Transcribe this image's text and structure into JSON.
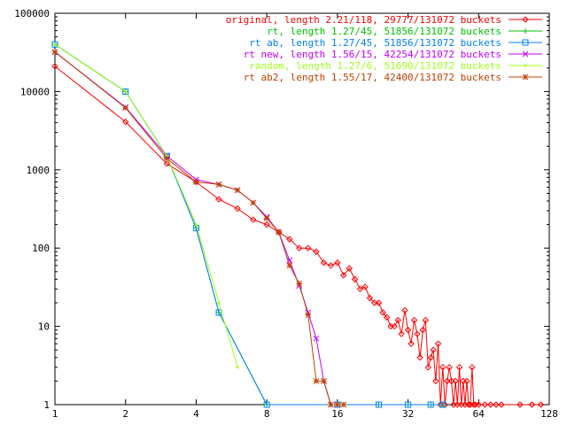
{
  "chart_data": {
    "type": "line",
    "title": "",
    "xlabel": "",
    "ylabel": "",
    "xscale": "log2",
    "yscale": "log10",
    "xlim": [
      1,
      128
    ],
    "ylim": [
      1,
      100000
    ],
    "xticks": [
      {
        "value": 1,
        "label": "1"
      },
      {
        "value": 2,
        "label": "2"
      },
      {
        "value": 4,
        "label": "4"
      },
      {
        "value": 8,
        "label": "8"
      },
      {
        "value": 16,
        "label": "16"
      },
      {
        "value": 32,
        "label": "32"
      },
      {
        "value": 64,
        "label": "64"
      },
      {
        "value": 128,
        "label": "128"
      }
    ],
    "yticks": [
      {
        "value": 1,
        "label": "1"
      },
      {
        "value": 10,
        "label": "10"
      },
      {
        "value": 100,
        "label": "100"
      },
      {
        "value": 1000,
        "label": "1000"
      },
      {
        "value": 10000,
        "label": "10000"
      },
      {
        "value": 100000,
        "label": "100000"
      }
    ],
    "grid": false,
    "legend_position": "top-right",
    "series": [
      {
        "name": "original, length 2.21/118, 29777/131072 buckets",
        "color": "#ff0000",
        "marker": "diamond",
        "x": [
          1,
          2,
          3,
          4,
          5,
          6,
          7,
          8,
          9,
          10,
          11,
          12,
          13,
          14,
          15,
          16,
          17,
          18,
          19,
          20,
          21,
          22,
          23,
          24,
          25,
          26,
          27,
          28,
          29,
          30,
          31,
          32,
          33,
          34,
          35,
          36,
          37,
          38,
          39,
          40,
          41,
          42,
          43,
          44,
          45,
          46,
          47,
          48,
          49,
          50,
          51,
          52,
          53,
          54,
          55,
          56,
          57,
          58,
          59,
          60,
          61,
          62,
          64,
          68,
          72,
          76,
          80,
          96,
          108,
          118
        ],
        "y": [
          21000,
          4100,
          1200,
          700,
          420,
          320,
          230,
          200,
          160,
          130,
          100,
          100,
          90,
          65,
          60,
          65,
          45,
          55,
          40,
          30,
          32,
          23,
          20,
          20,
          15,
          13,
          10,
          10,
          12,
          8,
          16,
          9,
          6,
          12,
          8,
          4,
          9,
          12,
          3,
          4,
          5,
          2,
          6,
          1,
          3,
          1,
          2,
          3,
          2,
          1,
          2,
          1,
          3,
          1,
          2,
          1,
          2,
          1,
          1,
          3,
          1,
          1,
          1,
          1,
          1,
          1,
          1,
          1,
          1,
          1
        ]
      },
      {
        "name": "rt, length 1.27/45, 51856/131072 buckets",
        "color": "#00c000",
        "marker": "plus",
        "x": [
          1,
          2,
          3,
          4,
          5,
          8,
          16,
          24,
          32,
          40,
          45
        ],
        "y": [
          40000,
          10000,
          1500,
          180,
          15,
          1,
          1,
          1,
          1,
          1,
          1
        ]
      },
      {
        "name": "rt ab, length 1.27/45, 51856/131072 buckets",
        "color": "#0080ff",
        "marker": "square",
        "x": [
          1,
          2,
          3,
          4,
          5,
          8,
          16,
          24,
          32,
          40,
          45
        ],
        "y": [
          40000,
          10000,
          1500,
          180,
          15,
          1,
          1,
          1,
          1,
          1,
          1
        ]
      },
      {
        "name": "rt new, length 1.56/15, 42254/131072 buckets",
        "color": "#c000ff",
        "marker": "cross",
        "x": [
          1,
          2,
          3,
          4,
          5,
          6,
          7,
          8,
          9,
          10,
          11,
          12,
          13,
          14,
          15
        ],
        "y": [
          32000,
          6300,
          1500,
          750,
          650,
          550,
          380,
          250,
          160,
          70,
          33,
          15,
          7,
          2,
          1
        ]
      },
      {
        "name": "random, length 1.27/6, 51690/131072 buckets",
        "color": "#a0ff20",
        "marker": "dot",
        "x": [
          1,
          2,
          3,
          4,
          5,
          6
        ],
        "y": [
          40000,
          10000,
          1500,
          200,
          20,
          3
        ]
      },
      {
        "name": "rt ab2, length 1.55/17, 42400/131072 buckets",
        "color": "#c04000",
        "marker": "star",
        "x": [
          1,
          2,
          3,
          4,
          5,
          6,
          7,
          8,
          9,
          10,
          11,
          12,
          13,
          14,
          15,
          16,
          17
        ],
        "y": [
          32000,
          6200,
          1400,
          700,
          650,
          550,
          380,
          240,
          160,
          60,
          35,
          14,
          2,
          2,
          1,
          1,
          1
        ]
      }
    ]
  }
}
